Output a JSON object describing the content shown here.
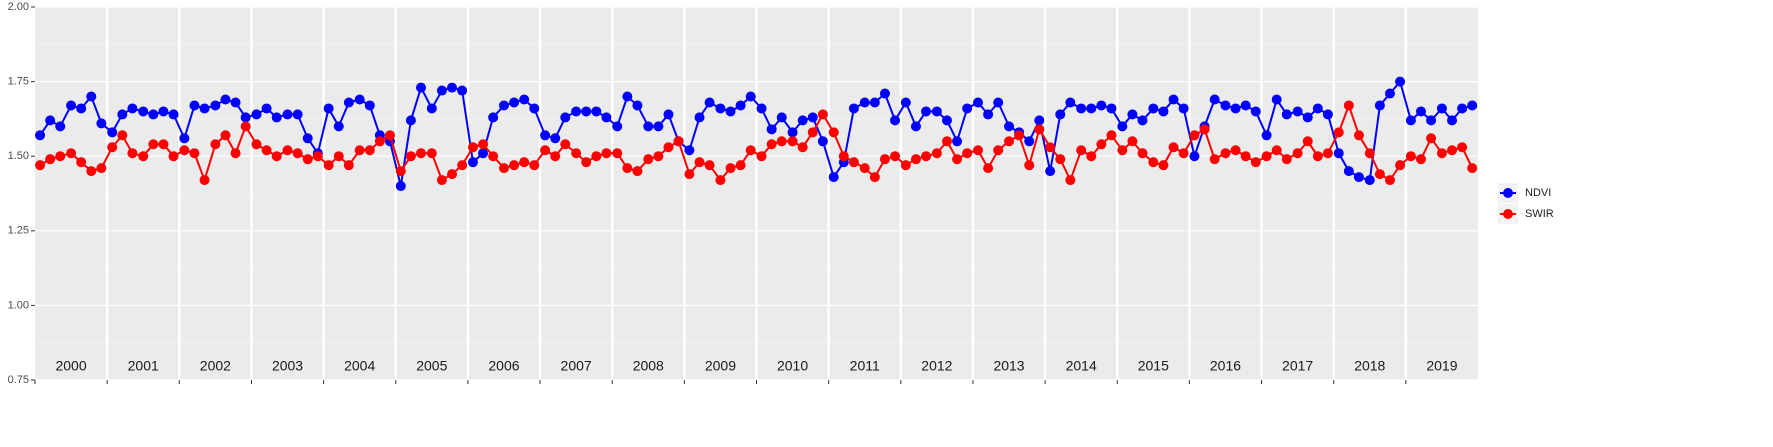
{
  "chart_data": {
    "type": "line",
    "x": [
      2000.07,
      2000.21,
      2000.35,
      2000.5,
      2000.64,
      2000.78,
      2000.92,
      2001.07,
      2001.21,
      2001.35,
      2001.5,
      2001.64,
      2001.78,
      2001.92,
      2002.07,
      2002.21,
      2002.35,
      2002.5,
      2002.64,
      2002.78,
      2002.92,
      2003.07,
      2003.21,
      2003.35,
      2003.5,
      2003.64,
      2003.78,
      2003.92,
      2004.07,
      2004.21,
      2004.35,
      2004.5,
      2004.64,
      2004.78,
      2004.92,
      2005.07,
      2005.21,
      2005.35,
      2005.5,
      2005.64,
      2005.78,
      2005.92,
      2006.07,
      2006.21,
      2006.35,
      2006.5,
      2006.64,
      2006.78,
      2006.92,
      2007.07,
      2007.21,
      2007.35,
      2007.5,
      2007.64,
      2007.78,
      2007.92,
      2008.07,
      2008.21,
      2008.35,
      2008.5,
      2008.64,
      2008.78,
      2008.92,
      2009.07,
      2009.21,
      2009.35,
      2009.5,
      2009.64,
      2009.78,
      2009.92,
      2010.07,
      2010.21,
      2010.35,
      2010.5,
      2010.64,
      2010.78,
      2010.92,
      2011.07,
      2011.21,
      2011.35,
      2011.5,
      2011.64,
      2011.78,
      2011.92,
      2012.07,
      2012.21,
      2012.35,
      2012.5,
      2012.64,
      2012.78,
      2012.92,
      2013.07,
      2013.21,
      2013.35,
      2013.5,
      2013.64,
      2013.78,
      2013.92,
      2014.07,
      2014.21,
      2014.35,
      2014.5,
      2014.64,
      2014.78,
      2014.92,
      2015.07,
      2015.21,
      2015.35,
      2015.5,
      2015.64,
      2015.78,
      2015.92,
      2016.07,
      2016.21,
      2016.35,
      2016.5,
      2016.64,
      2016.78,
      2016.92,
      2017.07,
      2017.21,
      2017.35,
      2017.5,
      2017.64,
      2017.78,
      2017.92,
      2018.07,
      2018.21,
      2018.35,
      2018.5,
      2018.64,
      2018.78,
      2018.92,
      2019.07,
      2019.21,
      2019.35,
      2019.5,
      2019.64,
      2019.78,
      2019.92
    ],
    "series": [
      {
        "name": "NDVI",
        "color": "#0000ff",
        "values": [
          1.57,
          1.62,
          1.6,
          1.67,
          1.66,
          1.7,
          1.61,
          1.58,
          1.64,
          1.66,
          1.65,
          1.64,
          1.65,
          1.64,
          1.56,
          1.67,
          1.66,
          1.67,
          1.69,
          1.68,
          1.63,
          1.64,
          1.66,
          1.63,
          1.64,
          1.64,
          1.56,
          1.51,
          1.66,
          1.6,
          1.68,
          1.69,
          1.67,
          1.57,
          1.55,
          1.4,
          1.62,
          1.73,
          1.66,
          1.72,
          1.73,
          1.72,
          1.48,
          1.51,
          1.63,
          1.67,
          1.68,
          1.69,
          1.66,
          1.57,
          1.56,
          1.63,
          1.65,
          1.65,
          1.65,
          1.63,
          1.6,
          1.7,
          1.67,
          1.6,
          1.6,
          1.64,
          1.55,
          1.52,
          1.63,
          1.68,
          1.66,
          1.65,
          1.67,
          1.7,
          1.66,
          1.59,
          1.63,
          1.58,
          1.62,
          1.63,
          1.55,
          1.43,
          1.48,
          1.66,
          1.68,
          1.68,
          1.71,
          1.62,
          1.68,
          1.6,
          1.65,
          1.65,
          1.62,
          1.55,
          1.66,
          1.68,
          1.64,
          1.68,
          1.6,
          1.58,
          1.55,
          1.62,
          1.45,
          1.64,
          1.68,
          1.66,
          1.66,
          1.67,
          1.66,
          1.6,
          1.64,
          1.62,
          1.66,
          1.65,
          1.69,
          1.66,
          1.5,
          1.6,
          1.69,
          1.67,
          1.66,
          1.67,
          1.65,
          1.57,
          1.69,
          1.64,
          1.65,
          1.63,
          1.66,
          1.64,
          1.51,
          1.45,
          1.43,
          1.42,
          1.67,
          1.71,
          1.75,
          1.62,
          1.65,
          1.62,
          1.66,
          1.62,
          1.66,
          1.67
        ]
      },
      {
        "name": "SWIR",
        "color": "#ff0000",
        "values": [
          1.47,
          1.49,
          1.5,
          1.51,
          1.48,
          1.45,
          1.46,
          1.53,
          1.57,
          1.51,
          1.5,
          1.54,
          1.54,
          1.5,
          1.52,
          1.51,
          1.42,
          1.54,
          1.57,
          1.51,
          1.6,
          1.54,
          1.52,
          1.5,
          1.52,
          1.51,
          1.49,
          1.5,
          1.47,
          1.5,
          1.47,
          1.52,
          1.52,
          1.55,
          1.57,
          1.45,
          1.5,
          1.51,
          1.51,
          1.42,
          1.44,
          1.47,
          1.53,
          1.54,
          1.5,
          1.46,
          1.47,
          1.48,
          1.47,
          1.52,
          1.5,
          1.54,
          1.51,
          1.48,
          1.5,
          1.51,
          1.51,
          1.46,
          1.45,
          1.49,
          1.5,
          1.53,
          1.55,
          1.44,
          1.48,
          1.47,
          1.42,
          1.46,
          1.47,
          1.52,
          1.5,
          1.54,
          1.55,
          1.55,
          1.53,
          1.58,
          1.64,
          1.58,
          1.5,
          1.48,
          1.46,
          1.43,
          1.49,
          1.5,
          1.47,
          1.49,
          1.5,
          1.51,
          1.55,
          1.49,
          1.51,
          1.52,
          1.46,
          1.52,
          1.55,
          1.57,
          1.47,
          1.59,
          1.53,
          1.49,
          1.42,
          1.52,
          1.5,
          1.54,
          1.57,
          1.52,
          1.55,
          1.51,
          1.48,
          1.47,
          1.53,
          1.51,
          1.57,
          1.59,
          1.49,
          1.51,
          1.52,
          1.5,
          1.48,
          1.5,
          1.52,
          1.49,
          1.51,
          1.55,
          1.5,
          1.51,
          1.58,
          1.67,
          1.57,
          1.51,
          1.44,
          1.42,
          1.47,
          1.5,
          1.49,
          1.56,
          1.51,
          1.52,
          1.53,
          1.46
        ]
      }
    ],
    "xlim": [
      2000,
      2020
    ],
    "year_labels": [
      2000,
      2001,
      2002,
      2003,
      2004,
      2005,
      2006,
      2007,
      2008,
      2009,
      2010,
      2011,
      2012,
      2013,
      2014,
      2015,
      2016,
      2017,
      2018,
      2019
    ],
    "ylim": [
      0.75,
      2.0
    ],
    "yticks": [
      {
        "value": 0.75,
        "label": "0.75"
      },
      {
        "value": 1.0,
        "label": "1.00"
      },
      {
        "value": 1.25,
        "label": "1.25"
      },
      {
        "value": 1.5,
        "label": "1.50"
      },
      {
        "value": 1.75,
        "label": "1.75"
      },
      {
        "value": 2.0,
        "label": "2.00"
      }
    ],
    "grid": true,
    "legend": "right"
  }
}
